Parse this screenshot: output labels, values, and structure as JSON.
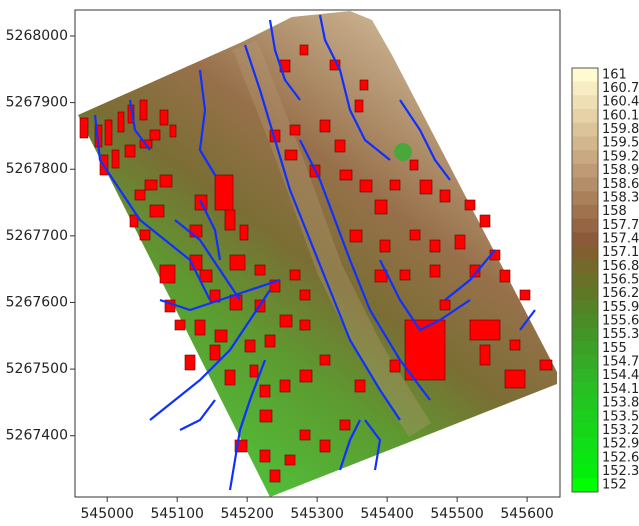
{
  "chart_data": {
    "type": "map",
    "xlim": [
      544954,
      545647
    ],
    "ylim": [
      5267308,
      5268039
    ],
    "xticks": [
      545000,
      545100,
      545200,
      545300,
      545400,
      545500,
      545600
    ],
    "yticks": [
      5267400,
      5267500,
      5267600,
      5267700,
      5267800,
      5267900,
      5268000
    ],
    "colorbar": {
      "levels": [
        161,
        160.7,
        160.4,
        160.1,
        159.8,
        159.5,
        159.2,
        158.9,
        158.6,
        158.3,
        158,
        157.7,
        157.4,
        157.1,
        156.8,
        156.5,
        156.2,
        155.9,
        155.6,
        155.3,
        155,
        154.7,
        154.4,
        154.1,
        153.8,
        153.5,
        153.2,
        152.9,
        152.6,
        152.3,
        152
      ],
      "colors": [
        "#fffbd0",
        "#f7ecc2",
        "#efdfb4",
        "#e6d2a6",
        "#dcc49a",
        "#d2b78d",
        "#c8a981",
        "#be9b74",
        "#b48e68",
        "#aa805b",
        "#a0734f",
        "#966644",
        "#8c5a38",
        "#80602f",
        "#74682b",
        "#697028",
        "#5e7826",
        "#548226",
        "#4a8c26",
        "#429626",
        "#3aa026",
        "#34aa26",
        "#2eb426",
        "#28be24",
        "#22c622",
        "#1cce1e",
        "#16d61a",
        "#10de16",
        "#0ae612",
        "#04ee0e",
        "#00ff00"
      ]
    }
  }
}
